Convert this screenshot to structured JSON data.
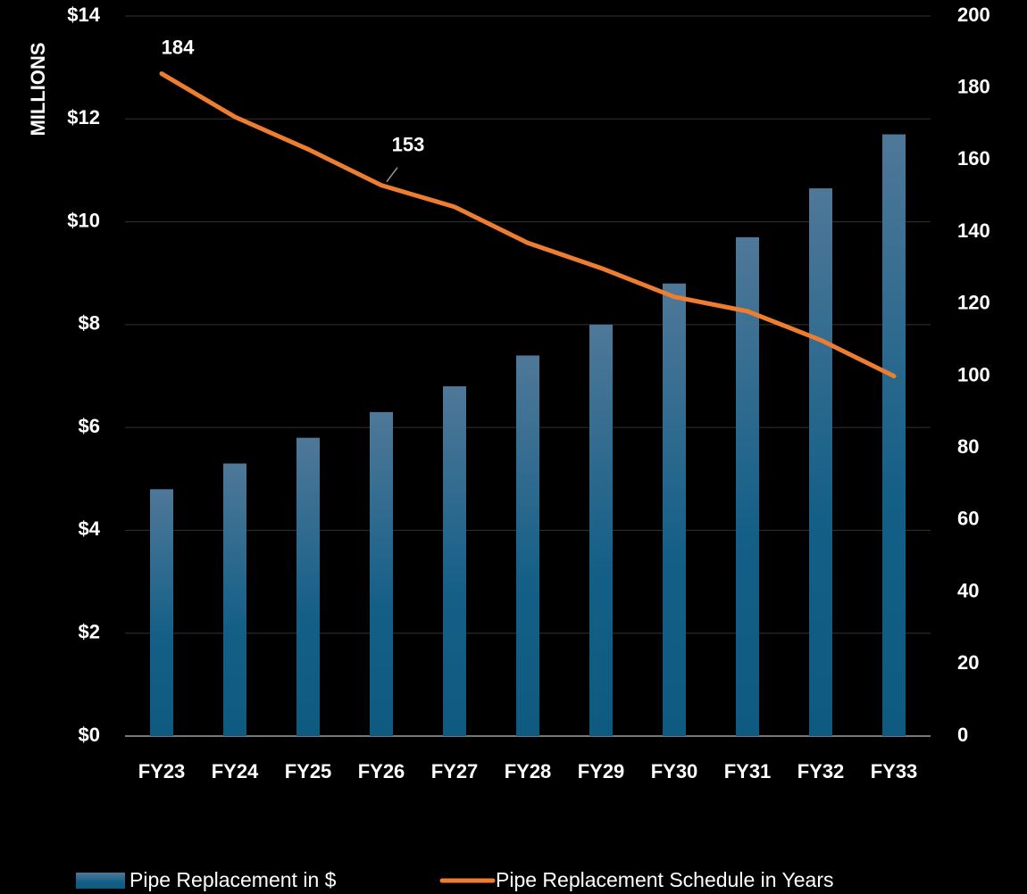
{
  "chart_data": {
    "type": "bar-line",
    "y_axis_label": "MILLIONS",
    "categories": [
      "FY23",
      "FY24",
      "FY25",
      "FY26",
      "FY27",
      "FY28",
      "FY29",
      "FY30",
      "FY31",
      "FY32",
      "FY33"
    ],
    "series": [
      {
        "name": "Pipe Replacement in $",
        "type": "bar",
        "color": "#17628c",
        "axis": "y",
        "values": [
          4.8,
          5.3,
          5.8,
          6.3,
          6.8,
          7.4,
          8.0,
          8.8,
          9.7,
          10.65,
          11.7
        ]
      },
      {
        "name": "Pipe Replacement Schedule in Years",
        "type": "line",
        "color": "#ed7d31",
        "axis": "y2",
        "values": [
          184,
          172,
          163,
          153,
          147,
          137,
          130,
          122,
          118,
          110,
          100
        ]
      }
    ],
    "ylim": [
      0,
      14
    ],
    "yticks": [
      {
        "value": 0,
        "label": "$0"
      },
      {
        "value": 2,
        "label": "$2"
      },
      {
        "value": 4,
        "label": "$4"
      },
      {
        "value": 6,
        "label": "$6"
      },
      {
        "value": 8,
        "label": "$8"
      },
      {
        "value": 10,
        "label": "$10"
      },
      {
        "value": 12,
        "label": "$12"
      },
      {
        "value": 14,
        "label": "$14"
      }
    ],
    "y2lim": [
      0,
      200
    ],
    "y2ticks": [
      0,
      20,
      40,
      60,
      80,
      100,
      120,
      140,
      160,
      180,
      200
    ],
    "grid": true,
    "legend": "bottom"
  }
}
